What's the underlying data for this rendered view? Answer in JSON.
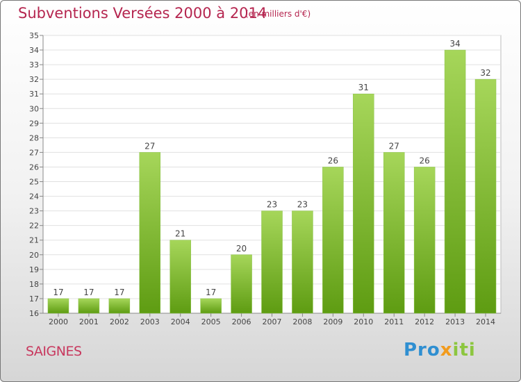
{
  "title": "Subventions Versées 2000 à 2014",
  "subtitle": "(en milliers d'€)",
  "location": "SAIGNES",
  "logo": {
    "p1": "Pro",
    "p2": "x",
    "p3": "iti"
  },
  "colors": {
    "bar_top": "#a6d65a",
    "bar_bottom": "#5e9c12",
    "title": "#b5254f"
  },
  "chart_data": {
    "type": "bar",
    "title": "Subventions Versées 2000 à 2014",
    "categories": [
      "2000",
      "2001",
      "2002",
      "2003",
      "2004",
      "2005",
      "2006",
      "2007",
      "2008",
      "2009",
      "2010",
      "2011",
      "2012",
      "2013",
      "2014"
    ],
    "values": [
      17,
      17,
      17,
      27,
      21,
      17,
      20,
      23,
      23,
      26,
      31,
      27,
      26,
      34,
      32
    ],
    "ylim": [
      16,
      35
    ],
    "yticks": [
      16,
      17,
      18,
      19,
      20,
      21,
      22,
      23,
      24,
      25,
      26,
      27,
      28,
      29,
      30,
      31,
      32,
      33,
      34,
      35
    ],
    "grid": true,
    "data_labels": true
  }
}
